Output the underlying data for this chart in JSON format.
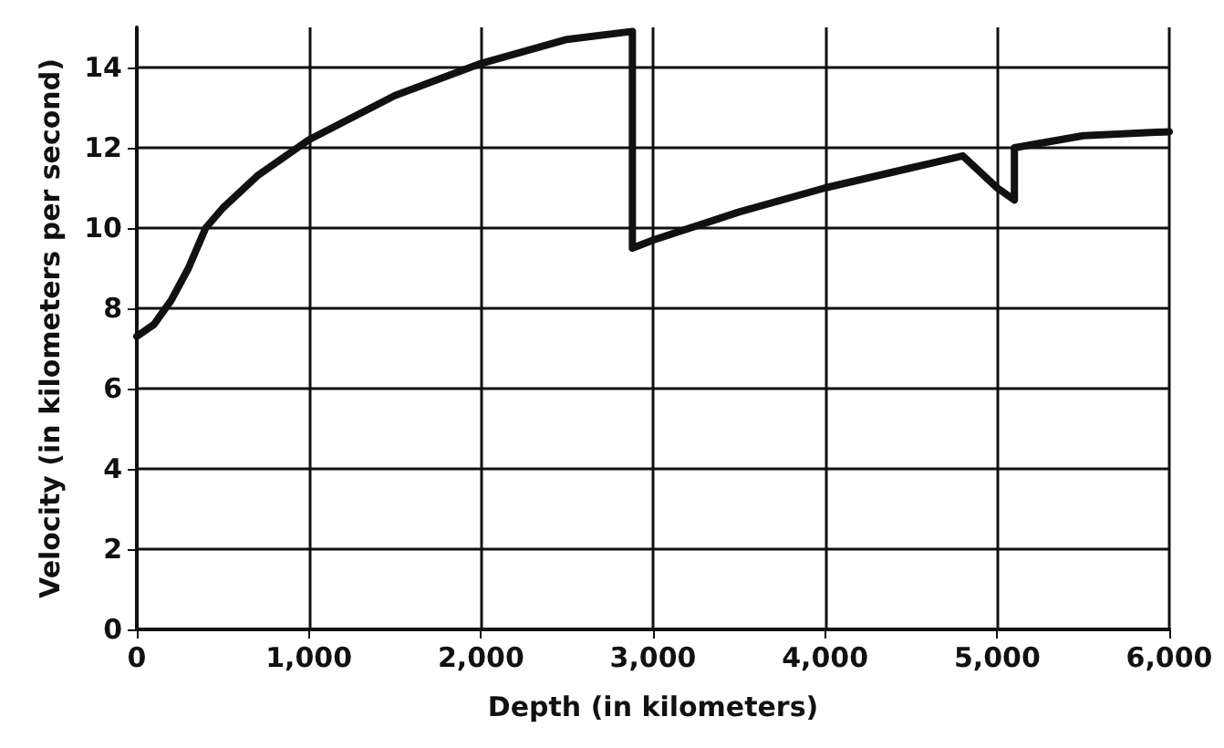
{
  "chart_data": {
    "type": "line",
    "xlabel": "Depth (in kilometers)",
    "ylabel": "Velocity (in kilometers per second)",
    "series": [
      {
        "color": "#111111",
        "x": [
          0,
          100,
          200,
          300,
          400,
          500,
          700,
          1000,
          1500,
          2000,
          2500,
          2880,
          2880,
          3000,
          3500,
          4000,
          4500,
          4800,
          5000,
          5100,
          5100,
          5500,
          6000
        ],
        "values": [
          7.3,
          7.6,
          8.2,
          9.0,
          10.0,
          10.5,
          11.3,
          12.2,
          13.3,
          14.1,
          14.7,
          14.9,
          9.5,
          9.7,
          10.4,
          11.0,
          11.5,
          11.8,
          11.0,
          10.7,
          12.0,
          12.3,
          12.4
        ]
      }
    ],
    "xlim": [
      0,
      6000
    ],
    "ylim": [
      0,
      15
    ],
    "xticks": [
      0,
      {
        "value": 1000,
        "label": "1,000"
      },
      {
        "value": 2000,
        "label": "2,000"
      },
      {
        "value": 3000,
        "label": "3,000"
      },
      {
        "value": 4000,
        "label": "4,000"
      },
      {
        "value": 5000,
        "label": "5,000"
      },
      {
        "value": 6000,
        "label": "6,000"
      }
    ],
    "yticks": [
      0,
      2,
      4,
      6,
      8,
      10,
      12,
      14
    ],
    "grid": true,
    "marker": "none",
    "line_style": "solid"
  }
}
